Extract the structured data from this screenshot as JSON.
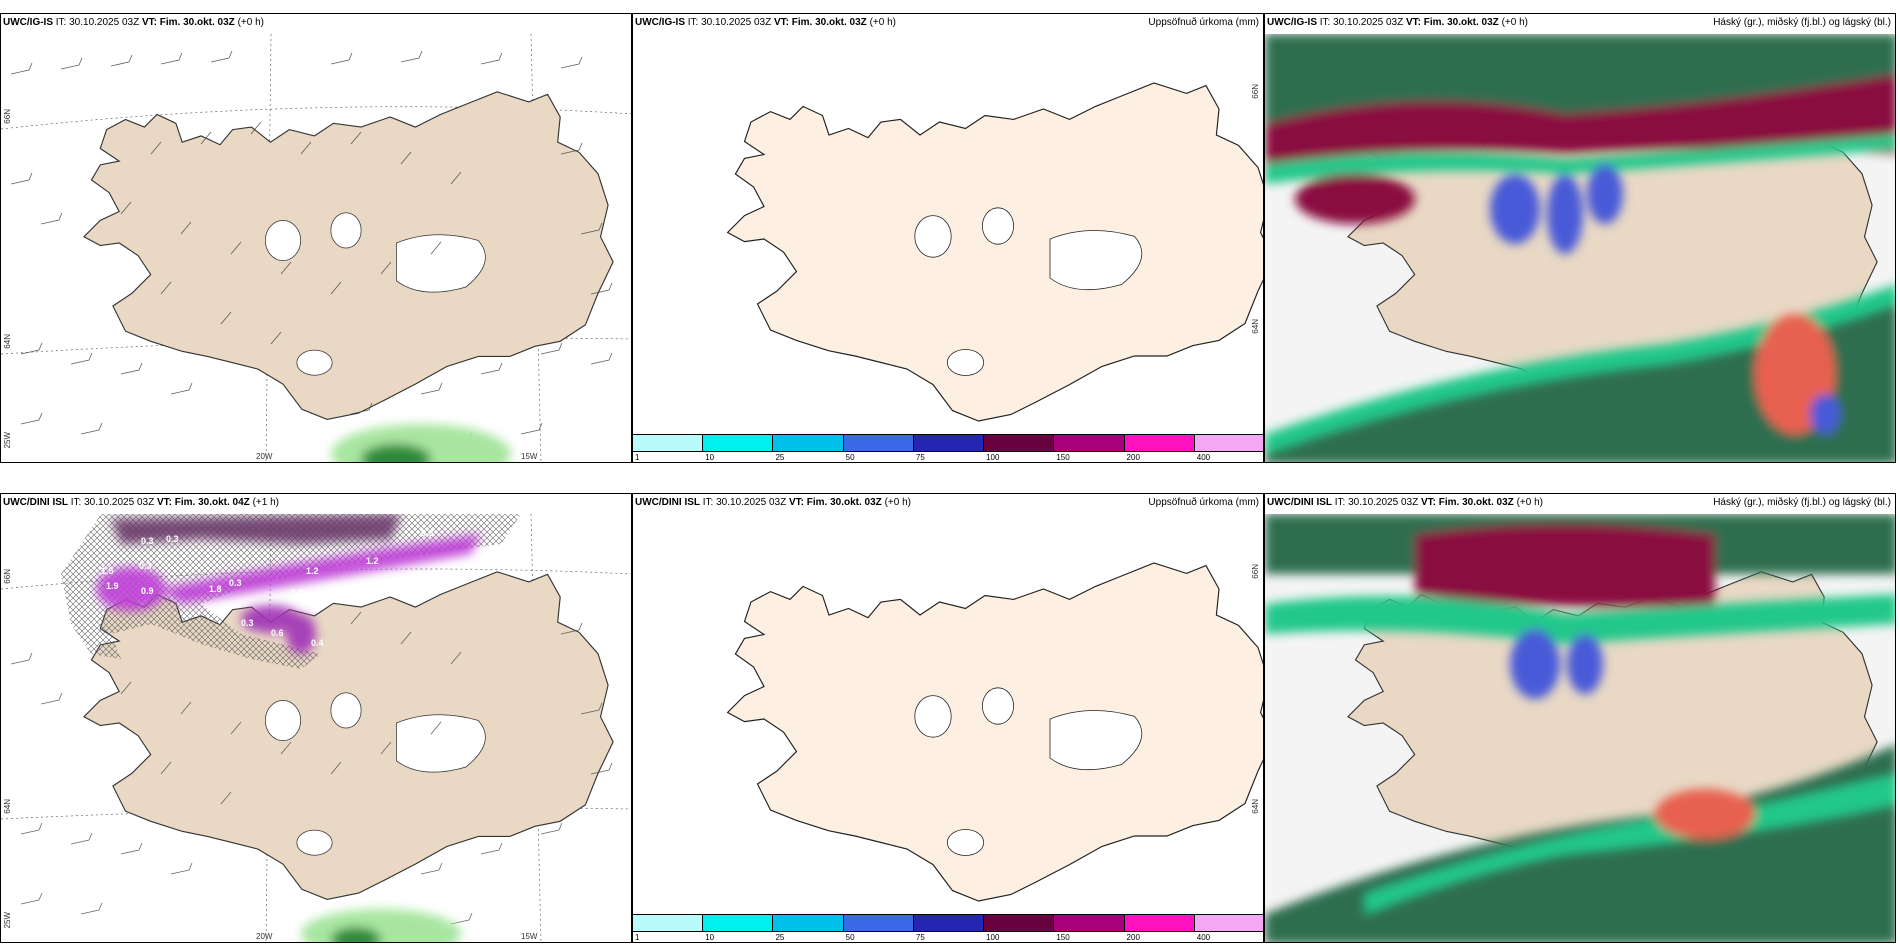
{
  "panels": {
    "p1": {
      "model": "UWC/IG-IS",
      "it": "IT: 30.10.2025 03Z",
      "vt": "VT: Fim. 30.okt. 03Z",
      "lead": "(+0 h)",
      "right": ""
    },
    "p2": {
      "model": "UWC/IG-IS",
      "it": "IT: 30.10.2025 03Z",
      "vt": "VT: Fim. 30.okt. 03Z",
      "lead": "(+0 h)",
      "right": "Uppsöfnuð úrkoma (mm)"
    },
    "p3": {
      "model": "UWC/IG-IS",
      "it": "IT: 30.10.2025 03Z",
      "vt": "VT: Fim. 30.okt. 03Z",
      "lead": "(+0 h)",
      "right": "Háský (gr.), miðský (fj.bl.) og lágský (bl.)"
    },
    "p4": {
      "model": "UWC/DINI ISL",
      "it": "IT: 30.10.2025 03Z",
      "vt": "VT: Fim. 30.okt. 04Z",
      "lead": "(+1 h)",
      "right": ""
    },
    "p5": {
      "model": "UWC/DINI ISL",
      "it": "IT: 30.10.2025 03Z",
      "vt": "VT: Fim. 30.okt. 03Z",
      "lead": "(+0 h)",
      "right": "Uppsöfnuð úrkoma (mm)"
    },
    "p6": {
      "model": "UWC/DINI ISL",
      "it": "IT: 30.10.2025 03Z",
      "vt": "VT: Fim. 30.okt. 03Z",
      "lead": "(+0 h)",
      "right": "Háský (gr.), miðský (fj.bl.) og lágský (bl.)"
    }
  },
  "grid_labels": {
    "lat66": "66N",
    "lat64": "64N",
    "lon25": "25W",
    "lon20": "20W",
    "lon15": "15W",
    "lat66r": "66N",
    "lat64r": "64N"
  },
  "precip_legend": {
    "ticks": [
      "1",
      "10",
      "25",
      "50",
      "75",
      "100",
      "150",
      "200",
      "400"
    ],
    "colors": [
      "#b8fbfb",
      "#00f0f0",
      "#00c0ee",
      "#3a6ae8",
      "#2626b4",
      "#6a0040",
      "#a8007a",
      "#ff10c0",
      "#f4a8f4"
    ]
  },
  "ice_values": [
    "0.3",
    "0.3",
    "0.3",
    "1.5",
    "0.3",
    "1.9",
    "1.2",
    "1.2",
    "1.8",
    "0.3",
    "1.3",
    "0.9",
    "0.3",
    "0.4",
    "0.6"
  ],
  "colors": {
    "land": "#e8d8c4",
    "land_light": "#fdf0e2",
    "coast": "#333333",
    "deep_green": "#2e6e50",
    "maroon": "#8a1040",
    "teal": "#22c88a",
    "blue": "#4a5ad8"
  }
}
